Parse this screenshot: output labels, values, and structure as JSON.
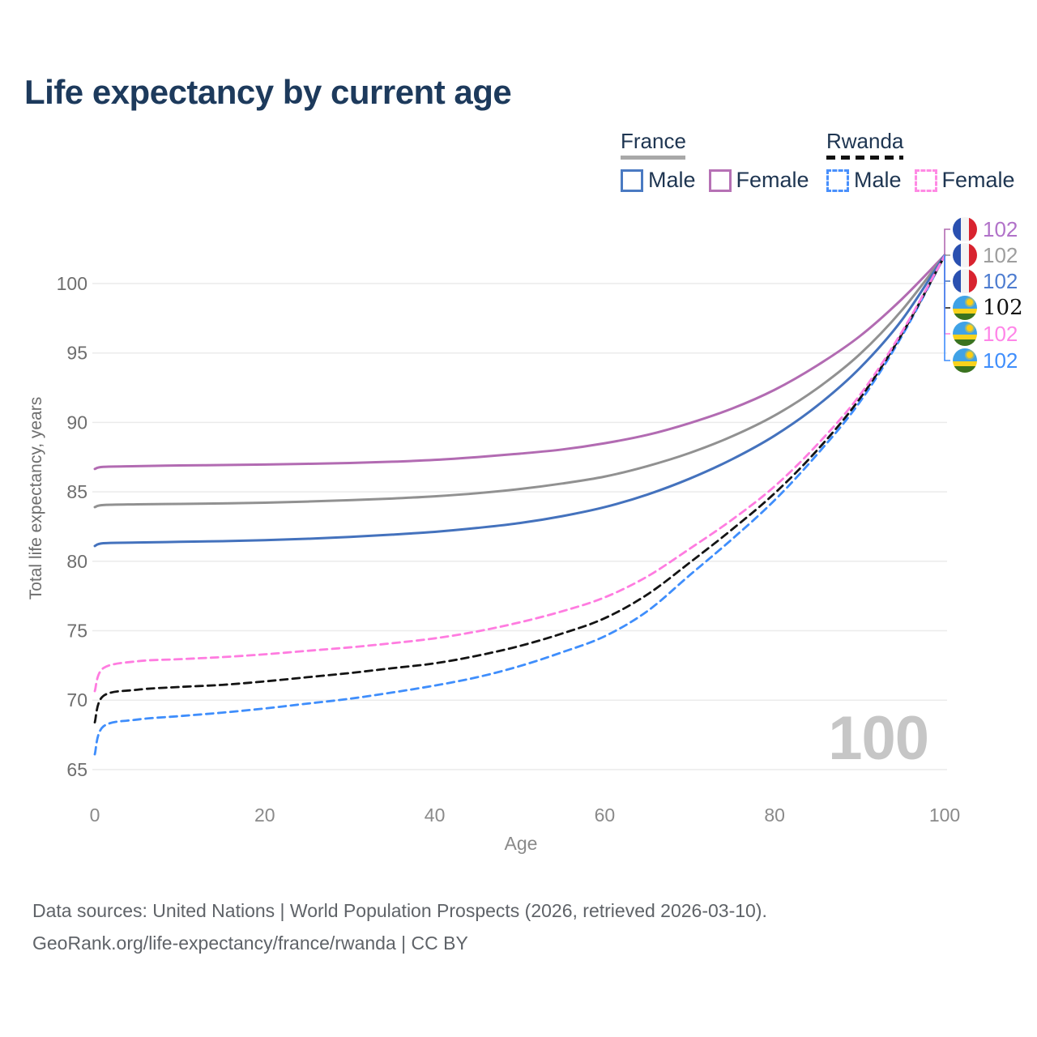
{
  "title": "Life expectancy by current age",
  "legend": {
    "groups": [
      {
        "label": "France",
        "line_style": "solid",
        "line_color": "#a8a8a8",
        "items": [
          {
            "label": "Male",
            "box_color": "#4a7ac2",
            "box_style": "solid"
          },
          {
            "label": "Female",
            "box_color": "#b671b5",
            "box_style": "solid"
          }
        ]
      },
      {
        "label": "Rwanda",
        "line_style": "dashed",
        "line_color": "#111111",
        "items": [
          {
            "label": "Male",
            "box_color": "#4990fc",
            "box_style": "dashed"
          },
          {
            "label": "Female",
            "box_color": "#ff8ae4",
            "box_style": "dashed"
          }
        ]
      }
    ]
  },
  "watermark_age": "100",
  "footer": {
    "line1": "Data sources: United Nations | World Population Prospects (2026, retrieved 2026-03-10).",
    "line2": "GeoRank.org/life-expectancy/france/rwanda | CC BY"
  },
  "chart_data": {
    "type": "line",
    "title": "Life expectancy by current age",
    "xlabel": "Age",
    "ylabel": "Total life expectancy, years",
    "xlim": [
      0,
      100
    ],
    "ylim": [
      65,
      102.5
    ],
    "xticks": [
      0,
      20,
      40,
      60,
      80,
      100
    ],
    "yticks": [
      65,
      70,
      75,
      80,
      85,
      90,
      95,
      100
    ],
    "grid": true,
    "grid_color": "#ebebeb",
    "legend_position": "top-right",
    "series": [
      {
        "id": "france-female",
        "name": "France Female",
        "country": "France",
        "sex": "Female",
        "color": "#b26bb2",
        "label_color": "#b172c9",
        "dash": "solid",
        "width": 3,
        "flag": "france",
        "end_label": "102",
        "points": [
          [
            0,
            86.65
          ],
          [
            1,
            86.8
          ],
          [
            5,
            86.85
          ],
          [
            10,
            86.9
          ],
          [
            15,
            86.93
          ],
          [
            20,
            86.97
          ],
          [
            25,
            87.02
          ],
          [
            30,
            87.08
          ],
          [
            35,
            87.17
          ],
          [
            40,
            87.3
          ],
          [
            45,
            87.5
          ],
          [
            50,
            87.75
          ],
          [
            55,
            88.05
          ],
          [
            60,
            88.5
          ],
          [
            65,
            89.1
          ],
          [
            70,
            89.95
          ],
          [
            75,
            91.0
          ],
          [
            80,
            92.35
          ],
          [
            85,
            94.1
          ],
          [
            90,
            96.2
          ],
          [
            95,
            98.9
          ],
          [
            100,
            102.05
          ]
        ]
      },
      {
        "id": "france-both",
        "name": "France Both sexes",
        "country": "France",
        "sex": "Both",
        "color": "#919191",
        "label_color": "#9e9e9e",
        "dash": "solid",
        "width": 3,
        "flag": "france",
        "end_label": "102",
        "points": [
          [
            0,
            83.9
          ],
          [
            1,
            84.05
          ],
          [
            5,
            84.1
          ],
          [
            10,
            84.13
          ],
          [
            15,
            84.17
          ],
          [
            20,
            84.22
          ],
          [
            25,
            84.3
          ],
          [
            30,
            84.4
          ],
          [
            35,
            84.52
          ],
          [
            40,
            84.68
          ],
          [
            45,
            84.9
          ],
          [
            50,
            85.2
          ],
          [
            55,
            85.6
          ],
          [
            60,
            86.1
          ],
          [
            65,
            86.85
          ],
          [
            70,
            87.8
          ],
          [
            75,
            89.0
          ],
          [
            80,
            90.5
          ],
          [
            85,
            92.45
          ],
          [
            90,
            94.9
          ],
          [
            95,
            98.1
          ],
          [
            100,
            102.05
          ]
        ]
      },
      {
        "id": "france-male",
        "name": "France Male",
        "country": "France",
        "sex": "Male",
        "color": "#4472bd",
        "label_color": "#4d7cd0",
        "dash": "solid",
        "width": 3,
        "flag": "france",
        "end_label": "102",
        "points": [
          [
            0,
            81.1
          ],
          [
            1,
            81.3
          ],
          [
            5,
            81.35
          ],
          [
            10,
            81.4
          ],
          [
            15,
            81.45
          ],
          [
            20,
            81.52
          ],
          [
            25,
            81.62
          ],
          [
            30,
            81.75
          ],
          [
            35,
            81.92
          ],
          [
            40,
            82.12
          ],
          [
            45,
            82.4
          ],
          [
            50,
            82.75
          ],
          [
            55,
            83.25
          ],
          [
            60,
            83.9
          ],
          [
            65,
            84.8
          ],
          [
            70,
            85.95
          ],
          [
            75,
            87.35
          ],
          [
            80,
            89.05
          ],
          [
            85,
            91.2
          ],
          [
            90,
            93.9
          ],
          [
            95,
            97.4
          ],
          [
            100,
            102.05
          ]
        ]
      },
      {
        "id": "rwanda-both",
        "name": "Rwanda Both sexes",
        "country": "Rwanda",
        "sex": "Both",
        "color": "#141414",
        "label_color": "#111111",
        "dash": "dashed",
        "width": 2.8,
        "flag": "rwanda",
        "end_label": "102",
        "points": [
          [
            0,
            68.4
          ],
          [
            1,
            70.3
          ],
          [
            5,
            70.75
          ],
          [
            10,
            70.95
          ],
          [
            15,
            71.1
          ],
          [
            20,
            71.35
          ],
          [
            25,
            71.65
          ],
          [
            30,
            71.95
          ],
          [
            35,
            72.3
          ],
          [
            40,
            72.65
          ],
          [
            45,
            73.2
          ],
          [
            50,
            73.9
          ],
          [
            55,
            74.8
          ],
          [
            60,
            75.9
          ],
          [
            65,
            77.6
          ],
          [
            70,
            79.9
          ],
          [
            75,
            82.3
          ],
          [
            80,
            84.9
          ],
          [
            85,
            88.0
          ],
          [
            90,
            91.7
          ],
          [
            95,
            96.4
          ],
          [
            100,
            102.0
          ]
        ]
      },
      {
        "id": "rwanda-female",
        "name": "Rwanda Female",
        "country": "Rwanda",
        "sex": "Female",
        "color": "#ff7ce0",
        "label_color": "#ff85e8",
        "dash": "dashed",
        "width": 2.8,
        "flag": "rwanda",
        "end_label": "102",
        "points": [
          [
            0,
            70.65
          ],
          [
            1,
            72.3
          ],
          [
            5,
            72.8
          ],
          [
            10,
            72.95
          ],
          [
            15,
            73.1
          ],
          [
            20,
            73.3
          ],
          [
            25,
            73.55
          ],
          [
            30,
            73.8
          ],
          [
            35,
            74.1
          ],
          [
            40,
            74.45
          ],
          [
            45,
            74.95
          ],
          [
            50,
            75.6
          ],
          [
            55,
            76.4
          ],
          [
            60,
            77.4
          ],
          [
            65,
            78.9
          ],
          [
            70,
            80.9
          ],
          [
            75,
            83.0
          ],
          [
            80,
            85.4
          ],
          [
            85,
            88.4
          ],
          [
            90,
            91.95
          ],
          [
            95,
            96.55
          ],
          [
            100,
            102.0
          ]
        ]
      },
      {
        "id": "rwanda-male",
        "name": "Rwanda Male",
        "country": "Rwanda",
        "sex": "Male",
        "color": "#3f8efc",
        "label_color": "#3f8efc",
        "dash": "dashed",
        "width": 2.8,
        "flag": "rwanda",
        "end_label": "102",
        "points": [
          [
            0,
            66.1
          ],
          [
            1,
            68.1
          ],
          [
            5,
            68.6
          ],
          [
            10,
            68.85
          ],
          [
            15,
            69.1
          ],
          [
            20,
            69.4
          ],
          [
            25,
            69.75
          ],
          [
            30,
            70.1
          ],
          [
            35,
            70.55
          ],
          [
            40,
            71.05
          ],
          [
            45,
            71.65
          ],
          [
            50,
            72.45
          ],
          [
            55,
            73.45
          ],
          [
            60,
            74.6
          ],
          [
            65,
            76.4
          ],
          [
            70,
            79.0
          ],
          [
            75,
            81.6
          ],
          [
            80,
            84.4
          ],
          [
            85,
            87.7
          ],
          [
            90,
            91.45
          ],
          [
            95,
            96.25
          ],
          [
            100,
            102.0
          ]
        ]
      }
    ]
  }
}
